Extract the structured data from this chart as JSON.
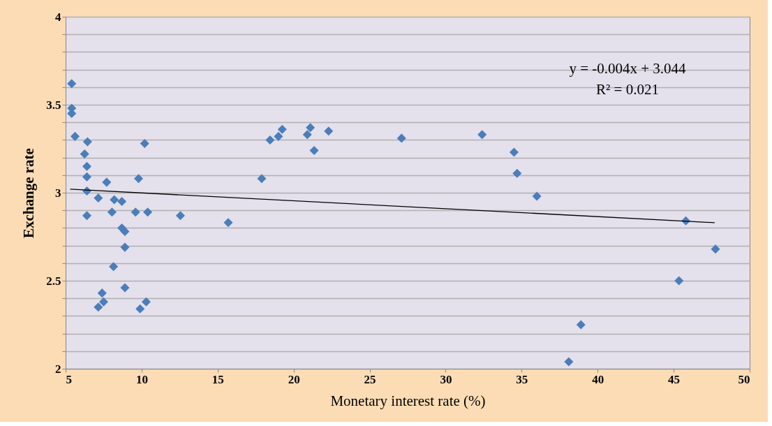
{
  "chart_data": {
    "type": "scatter",
    "xlabel": "Monetary interest rate (%)",
    "ylabel": "Exchange rate",
    "xlim": [
      5,
      50
    ],
    "ylim": [
      2,
      4
    ],
    "xticks": [
      5,
      10,
      15,
      20,
      25,
      30,
      35,
      40,
      45,
      50
    ],
    "yticks": [
      2,
      {
        "value": 2.1,
        "label": null
      },
      {
        "value": 2.2,
        "label": null
      },
      {
        "value": 2.3,
        "label": null
      },
      {
        "value": 2.4,
        "label": null
      },
      2.5,
      {
        "value": 2.6,
        "label": null
      },
      {
        "value": 2.7,
        "label": null
      },
      {
        "value": 2.8,
        "label": null
      },
      {
        "value": 2.9,
        "label": null
      },
      3,
      {
        "value": 3.1,
        "label": null
      },
      {
        "value": 3.2,
        "label": null
      },
      {
        "value": 3.3,
        "label": null
      },
      {
        "value": 3.4,
        "label": null
      },
      3.5,
      {
        "value": 3.6,
        "label": null
      },
      {
        "value": 3.7,
        "label": null
      },
      {
        "value": 3.8,
        "label": null
      },
      {
        "value": 3.9,
        "label": null
      },
      4
    ],
    "grid": "y",
    "marker": "diamond",
    "annotations": [
      "y = -0.004x + 3.044",
      "R² = 0.021"
    ],
    "series": [
      {
        "color": "#4a7ebb",
        "x": [
          5.4,
          5.4,
          5.4,
          5.62,
          6.44,
          10.2,
          6.25,
          6.4,
          6.4,
          7.7,
          9.8,
          6.4,
          7.15,
          8.2,
          8.7,
          6.4,
          8.05,
          9.6,
          10.4,
          12.55,
          8.7,
          8.9,
          8.9,
          8.15,
          8.9,
          7.4,
          7.5,
          7.15,
          10.3,
          9.9,
          15.7,
          17.9,
          18.45,
          19.0,
          19.25,
          20.9,
          21.1,
          21.35,
          22.3,
          27.1,
          32.4,
          34.5,
          34.7,
          36.0,
          45.8,
          47.75,
          45.35,
          38.9,
          38.1
        ],
        "values": [
          3.62,
          3.48,
          3.45,
          3.32,
          3.29,
          3.28,
          3.22,
          3.15,
          3.09,
          3.06,
          3.08,
          3.01,
          2.97,
          2.96,
          2.95,
          2.87,
          2.89,
          2.89,
          2.89,
          2.87,
          2.8,
          2.78,
          2.69,
          2.58,
          2.46,
          2.43,
          2.38,
          2.35,
          2.38,
          2.34,
          2.83,
          3.08,
          3.3,
          3.32,
          3.36,
          3.33,
          3.37,
          3.24,
          3.35,
          3.31,
          3.33,
          3.23,
          3.11,
          2.98,
          2.84,
          2.68,
          2.5,
          2.25,
          2.04
        ]
      },
      {
        "type": "line",
        "marker": "none",
        "line_style": "solid",
        "color": "#000000",
        "x": [
          5.3,
          47.7
        ],
        "values": [
          3.02,
          2.83
        ]
      }
    ]
  }
}
